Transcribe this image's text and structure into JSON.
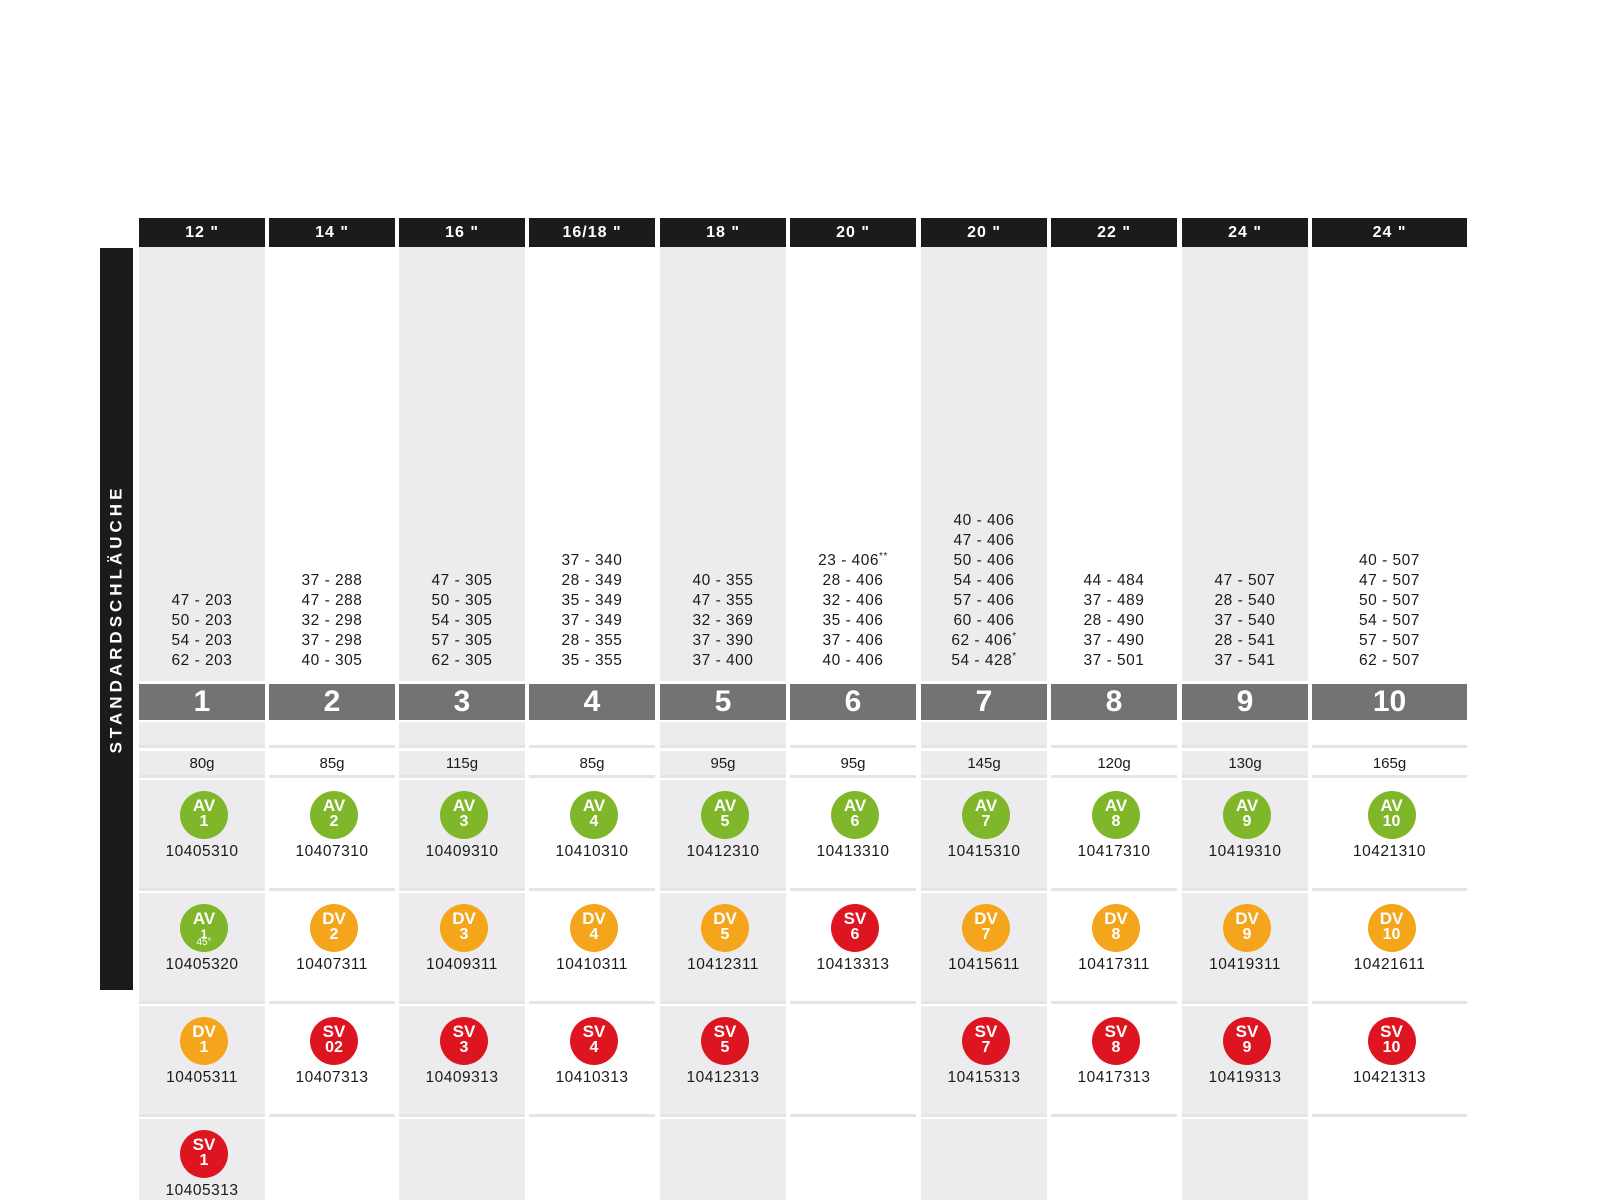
{
  "side_label": "STANDARDSCHLÄUCHE",
  "colors": {
    "AV": "#80b62a",
    "DV": "#f4a51c",
    "SV": "#dd1521",
    "header": "#1b1b1b",
    "number_bar": "#737373",
    "shade": "#ececee"
  },
  "columns": [
    {
      "size": "12 \"",
      "number": "1",
      "sizes": [
        "47 - 203",
        "50 - 203",
        "54 - 203",
        "62 - 203"
      ],
      "weight": "80g",
      "valves": [
        {
          "type": "AV",
          "num": "1",
          "art": "10405310"
        },
        {
          "type": "AV",
          "num": "1",
          "sub": "45°",
          "art": "10405320"
        },
        {
          "type": "DV",
          "num": "1",
          "art": "10405311"
        },
        {
          "type": "SV",
          "num": "1",
          "art": "10405313"
        }
      ]
    },
    {
      "size": "14 \"",
      "number": "2",
      "sizes": [
        "37 - 288",
        "47 - 288",
        "32 - 298",
        "37 - 298",
        "40 - 305"
      ],
      "weight": "85g",
      "valves": [
        {
          "type": "AV",
          "num": "2",
          "art": "10407310"
        },
        {
          "type": "DV",
          "num": "2",
          "art": "10407311"
        },
        {
          "type": "SV",
          "num": "02",
          "art": "10407313"
        }
      ]
    },
    {
      "size": "16 \"",
      "number": "3",
      "sizes": [
        "47 - 305",
        "50 - 305",
        "54 - 305",
        "57 - 305",
        "62 - 305"
      ],
      "weight": "115g",
      "valves": [
        {
          "type": "AV",
          "num": "3",
          "art": "10409310"
        },
        {
          "type": "DV",
          "num": "3",
          "art": "10409311"
        },
        {
          "type": "SV",
          "num": "3",
          "art": "10409313"
        }
      ]
    },
    {
      "size": "16/18 \"",
      "number": "4",
      "sizes": [
        "37 - 340",
        "28 - 349",
        "35 - 349",
        "37 - 349",
        "28 - 355",
        "35 - 355"
      ],
      "weight": "85g",
      "valves": [
        {
          "type": "AV",
          "num": "4",
          "art": "10410310"
        },
        {
          "type": "DV",
          "num": "4",
          "art": "10410311"
        },
        {
          "type": "SV",
          "num": "4",
          "art": "10410313"
        }
      ]
    },
    {
      "size": "18 \"",
      "number": "5",
      "sizes": [
        "40 - 355",
        "47 - 355",
        "32 - 369",
        "37 - 390",
        "37 - 400"
      ],
      "weight": "95g",
      "valves": [
        {
          "type": "AV",
          "num": "5",
          "art": "10412310"
        },
        {
          "type": "DV",
          "num": "5",
          "art": "10412311"
        },
        {
          "type": "SV",
          "num": "5",
          "art": "10412313"
        }
      ]
    },
    {
      "size": "20 \"",
      "number": "6",
      "sizes": [
        "23 - 406",
        "28 - 406",
        "32 - 406",
        "35 - 406",
        "37 - 406",
        "40 - 406"
      ],
      "size_marks": [
        "**",
        "",
        "",
        "",
        "",
        ""
      ],
      "weight": "95g",
      "valves": [
        {
          "type": "AV",
          "num": "6",
          "art": "10413310"
        },
        {
          "type": "SV",
          "num": "6",
          "art": "10413313"
        }
      ]
    },
    {
      "size": "20 \"",
      "number": "7",
      "sizes": [
        "40 - 406",
        "47 - 406",
        "50 - 406",
        "54 - 406",
        "57 - 406",
        "60 - 406",
        "62 - 406",
        "54 - 428"
      ],
      "size_marks": [
        "",
        "",
        "",
        "",
        "",
        "",
        "*",
        "*"
      ],
      "weight": "145g",
      "valves": [
        {
          "type": "AV",
          "num": "7",
          "art": "10415310"
        },
        {
          "type": "DV",
          "num": "7",
          "art": "10415611"
        },
        {
          "type": "SV",
          "num": "7",
          "art": "10415313"
        }
      ]
    },
    {
      "size": "22 \"",
      "number": "8",
      "sizes": [
        "44 - 484",
        "37 - 489",
        "28 - 490",
        "37 - 490",
        "37 - 501"
      ],
      "weight": "120g",
      "valves": [
        {
          "type": "AV",
          "num": "8",
          "art": "10417310"
        },
        {
          "type": "DV",
          "num": "8",
          "art": "10417311"
        },
        {
          "type": "SV",
          "num": "8",
          "art": "10417313"
        }
      ]
    },
    {
      "size": "24 \"",
      "number": "9",
      "sizes": [
        "47 - 507",
        "28 - 540",
        "37 - 540",
        "28 - 541",
        "37 - 541"
      ],
      "weight": "130g",
      "valves": [
        {
          "type": "AV",
          "num": "9",
          "art": "10419310"
        },
        {
          "type": "DV",
          "num": "9",
          "art": "10419311"
        },
        {
          "type": "SV",
          "num": "9",
          "art": "10419313"
        }
      ]
    },
    {
      "size": "24 \"",
      "number": "10",
      "sizes": [
        "40 - 507",
        "47 - 507",
        "50 - 507",
        "54 - 507",
        "57 - 507",
        "62 - 507"
      ],
      "weight": "165g",
      "valves": [
        {
          "type": "AV",
          "num": "10",
          "art": "10421310"
        },
        {
          "type": "DV",
          "num": "10",
          "art": "10421611"
        },
        {
          "type": "SV",
          "num": "10",
          "art": "10421313"
        }
      ]
    }
  ]
}
